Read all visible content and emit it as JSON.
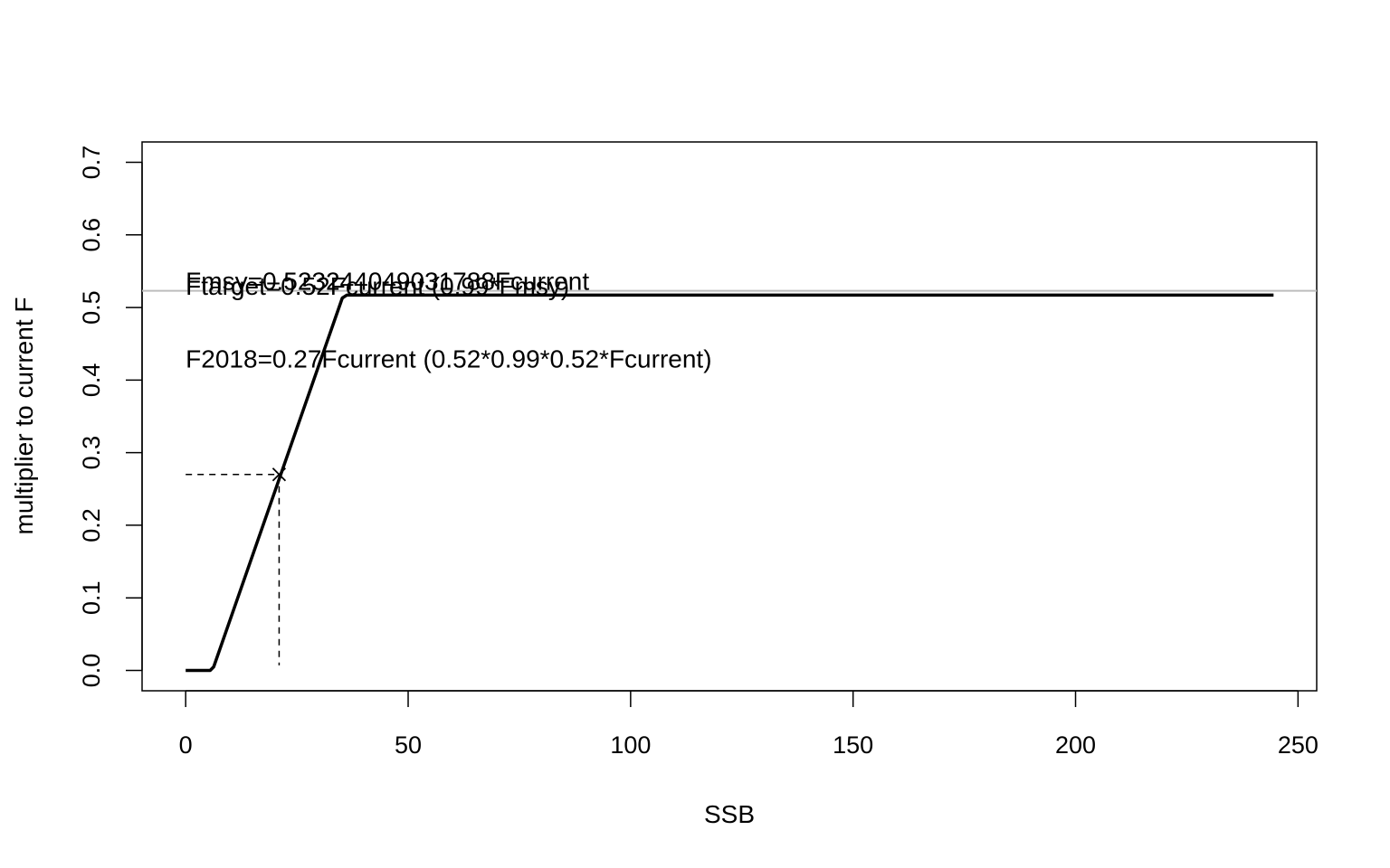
{
  "chart_data": {
    "type": "line",
    "title": "",
    "xlabel": "SSB",
    "ylabel": "multiplier to current F",
    "xlim": [
      -9.8,
      254.2
    ],
    "ylim": [
      -0.028,
      0.728
    ],
    "x_ticks": [
      "0",
      "50",
      "100",
      "150",
      "200",
      "250"
    ],
    "x_tick_values": [
      0,
      50,
      100,
      150,
      200,
      250
    ],
    "y_ticks": [
      "0.0",
      "0.1",
      "0.2",
      "0.3",
      "0.4",
      "0.5",
      "0.6",
      "0.7"
    ],
    "y_tick_values": [
      0.0,
      0.1,
      0.2,
      0.3,
      0.4,
      0.5,
      0.6,
      0.7
    ],
    "grid": false,
    "series": [
      {
        "x": [
          0,
          5.5,
          6.3,
          35.2,
          36.2,
          244.5
        ],
        "y": [
          0,
          0,
          0.005,
          0.513,
          0.517,
          0.517
        ],
        "color": "#000000"
      }
    ],
    "reference_line": {
      "y": 0.523,
      "color": "#bdbdbd"
    },
    "point": {
      "x": 21,
      "y": 0.27,
      "marker": "x"
    },
    "guide_lines": [
      {
        "from": [
          0,
          0.27
        ],
        "to": [
          21,
          0.27
        ],
        "style": "dashed"
      },
      {
        "from": [
          21,
          0.27
        ],
        "to": [
          21,
          0.007
        ],
        "style": "dashed"
      }
    ],
    "annotations": [
      {
        "text": "Fmsy=0.523244049031788Fcurrent",
        "x": 0,
        "y": 0.537
      },
      {
        "text": "Ftarget=0.52Fcurrent (0.99*Fmsy)",
        "x": 0,
        "y": 0.53
      },
      {
        "text": "F2018=0.27Fcurrent (0.52*0.99*0.52*Fcurrent)",
        "x": 0,
        "y": 0.43
      }
    ]
  }
}
